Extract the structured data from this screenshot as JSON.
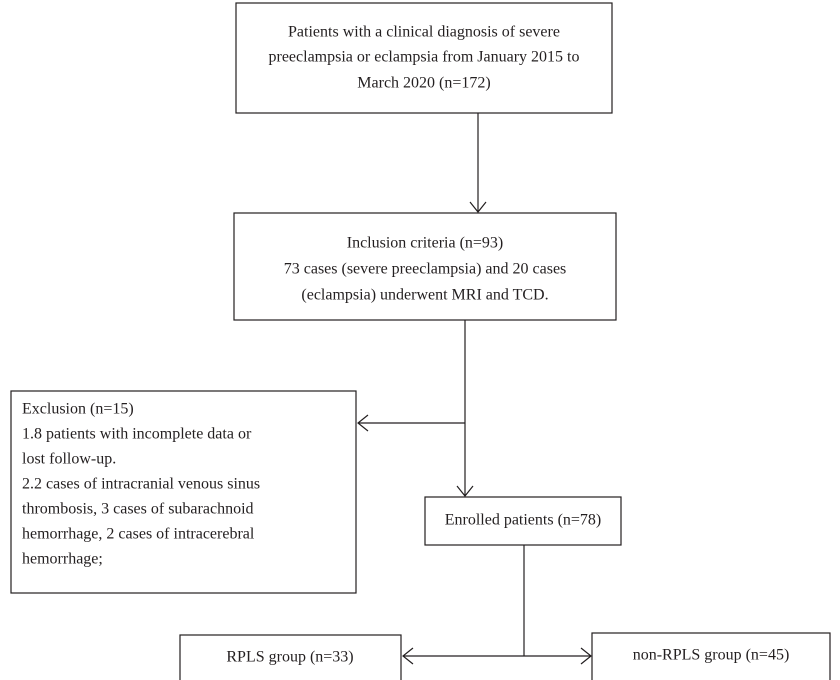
{
  "nodes": [
    {
      "lines": [
        "Patients with a clinical diagnosis of severe",
        "preeclampsia or eclampsia from January 2015 to",
        "March 2020 (n=172)"
      ]
    },
    {
      "lines": [
        "Inclusion criteria (n=93)",
        "73 cases (severe preeclampsia) and 20 cases",
        "(eclampsia) underwent MRI and TCD."
      ]
    },
    {
      "lines": [
        "Exclusion (n=15)",
        "1.8 patients with incomplete data or",
        "lost follow-up.",
        "2.2 cases of intracranial venous sinus",
        "thrombosis, 3 cases of subarachnoid",
        "hemorrhage, 2 cases of intracerebral",
        "hemorrhage;"
      ]
    },
    {
      "lines": [
        "Enrolled patients (n=78)"
      ]
    },
    {
      "lines": [
        "RPLS group (n=33)"
      ]
    },
    {
      "lines": [
        "non-RPLS group (n=45)"
      ]
    }
  ]
}
